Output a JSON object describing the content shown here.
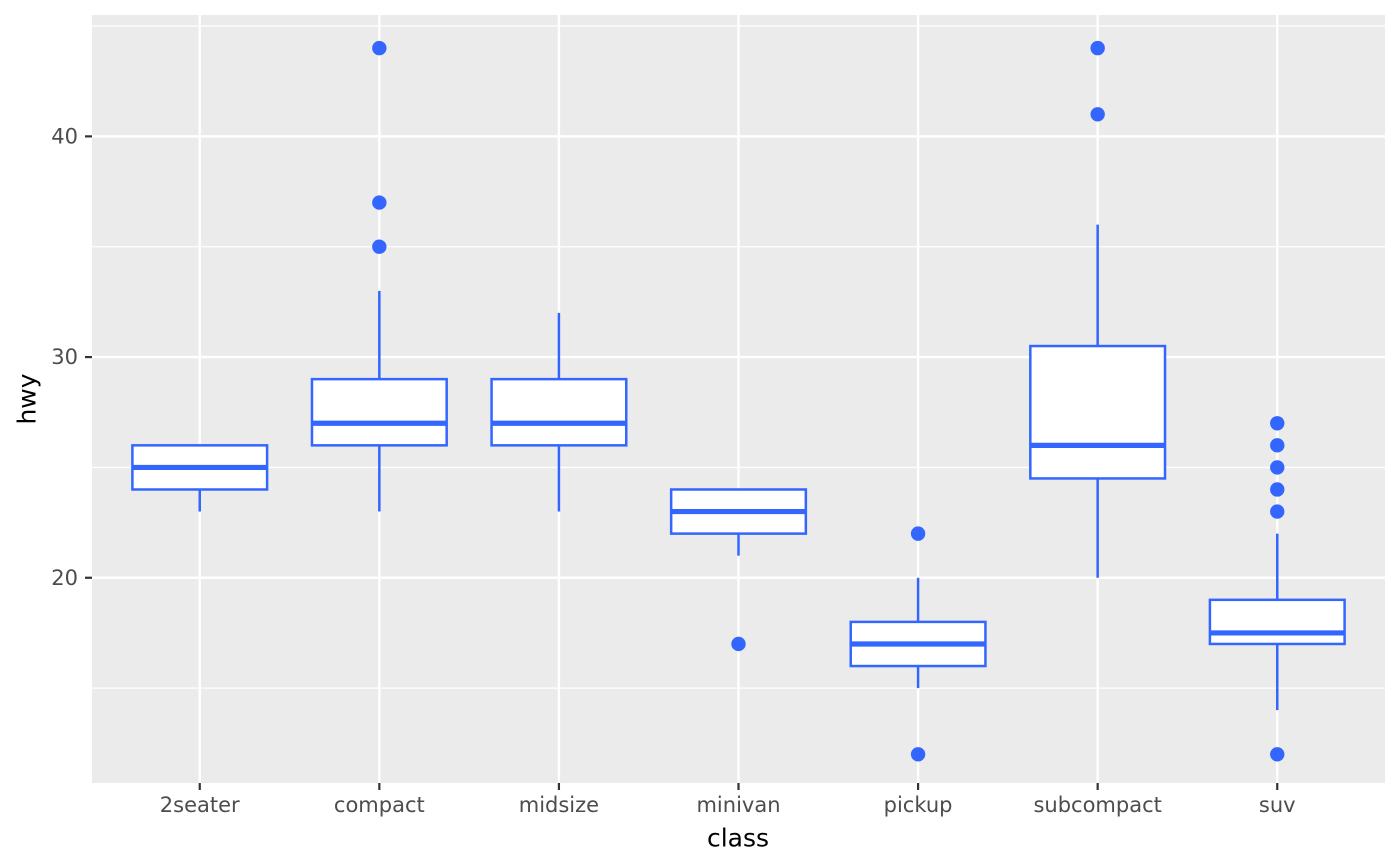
{
  "chart_data": {
    "type": "boxplot",
    "title": "",
    "xlabel": "class",
    "ylabel": "hwy",
    "legend": "none",
    "grid": "on",
    "categories": [
      "2seater",
      "compact",
      "midsize",
      "minivan",
      "pickup",
      "subcompact",
      "suv"
    ],
    "series": [
      {
        "category": "2seater",
        "lower_whisker": 23,
        "q1": 24,
        "median": 25,
        "q3": 26,
        "upper_whisker": 26,
        "outliers": []
      },
      {
        "category": "compact",
        "lower_whisker": 23,
        "q1": 26,
        "median": 27,
        "q3": 29,
        "upper_whisker": 33,
        "outliers": [
          35,
          37,
          44
        ]
      },
      {
        "category": "midsize",
        "lower_whisker": 23,
        "q1": 26,
        "median": 27,
        "q3": 29,
        "upper_whisker": 32,
        "outliers": []
      },
      {
        "category": "minivan",
        "lower_whisker": 21,
        "q1": 22,
        "median": 23,
        "q3": 24,
        "upper_whisker": 24,
        "outliers": [
          17
        ]
      },
      {
        "category": "pickup",
        "lower_whisker": 15,
        "q1": 16,
        "median": 17,
        "q3": 18,
        "upper_whisker": 20,
        "outliers": [
          12,
          22
        ]
      },
      {
        "category": "subcompact",
        "lower_whisker": 20,
        "q1": 24.5,
        "median": 26,
        "q3": 30.5,
        "upper_whisker": 36,
        "outliers": [
          41,
          44
        ]
      },
      {
        "category": "suv",
        "lower_whisker": 14,
        "q1": 17,
        "median": 17.5,
        "q3": 19,
        "upper_whisker": 22,
        "outliers": [
          12,
          23,
          24,
          25,
          26,
          27
        ]
      }
    ],
    "y_axis": {
      "tick_values": [
        20,
        30,
        40
      ],
      "tick_labels": [
        "20",
        "30",
        "40"
      ],
      "minor_tick_values": [
        15,
        25,
        35,
        45
      ],
      "range": [
        10.7,
        45.5
      ]
    },
    "colors": {
      "box_stroke": "#3366FF",
      "box_fill": "#FFFFFF",
      "outlier": "#3366FF",
      "panel_background": "#EBEBEB",
      "grid_major": "#FFFFFF",
      "grid_minor": "#FFFFFF",
      "tick_mark": "#333333",
      "tick_label": "#4D4D4D",
      "axis_title": "#000000",
      "figure_background": "#FFFFFF"
    }
  }
}
